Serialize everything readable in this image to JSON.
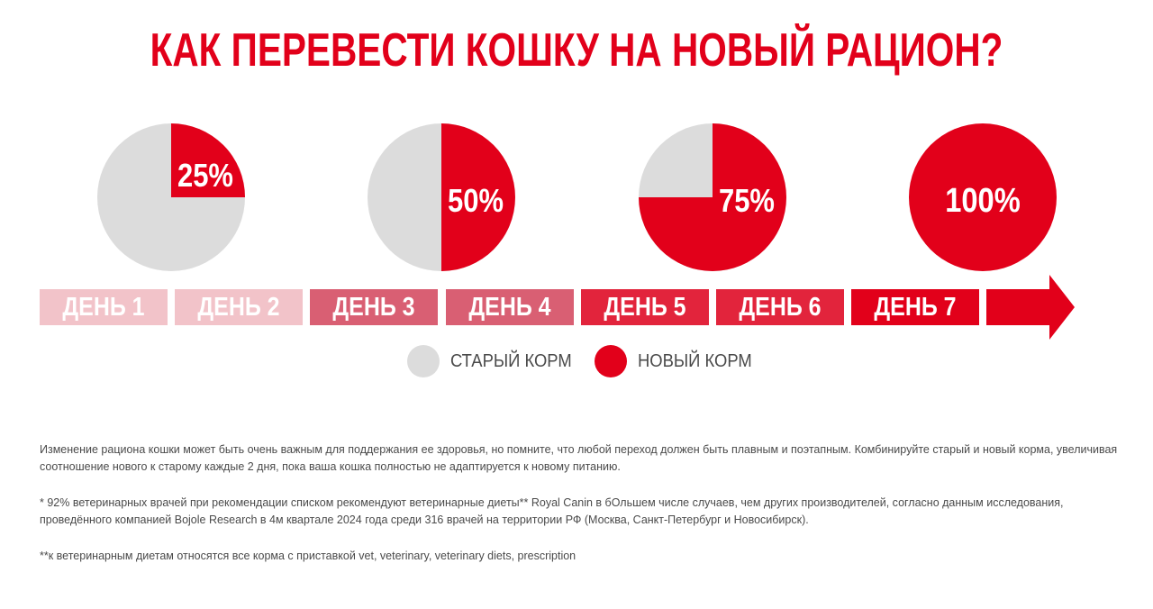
{
  "header": {
    "title": "КАК ПЕРЕВЕСТИ КОШКУ НА НОВЫЙ РАЦИОН?"
  },
  "colors": {
    "old": "#dcdcdc",
    "new": "#e2001a",
    "title": "#e2001a",
    "text": "#4a4a4a"
  },
  "chart_data": {
    "type": "pie",
    "pies": [
      {
        "new_percent": 25,
        "label": "25%"
      },
      {
        "new_percent": 50,
        "label": "50%"
      },
      {
        "new_percent": 75,
        "label": "75%"
      },
      {
        "new_percent": 100,
        "label": "100%"
      }
    ],
    "days": [
      {
        "label": "ДЕНЬ 1",
        "color": "#f2c3c9"
      },
      {
        "label": "ДЕНЬ 2",
        "color": "#f2c3c9"
      },
      {
        "label": "ДЕНЬ 3",
        "color": "#d95f73"
      },
      {
        "label": "ДЕНЬ 4",
        "color": "#d95f73"
      },
      {
        "label": "ДЕНЬ 5",
        "color": "#e2243c"
      },
      {
        "label": "ДЕНЬ 6",
        "color": "#e2243c"
      },
      {
        "label": "ДЕНЬ 7",
        "color": "#e2001a"
      }
    ],
    "legend": [
      {
        "label": "СТАРЫЙ КОРМ",
        "color": "#dcdcdc"
      },
      {
        "label": "НОВЫЙ КОРМ",
        "color": "#e2001a"
      }
    ]
  },
  "notes": [
    "Изменение рациона кошки может быть очень важным для поддержания ее здоровья, но помните, что любой переход должен быть плавным и поэтапным. Комбинируйте старый и новый корма, увеличивая соотношение нового к старому каждые 2 дня, пока ваша кошка полностью не адаптируется к новому питанию.",
    "* 92% ветеринарных врачей при рекомендации списком рекомендуют ветеринарные диеты** Royal Canin в бОльшем числе случаев, чем других производителей, согласно данным исследования, проведённого компанией Bojole Research в 4м квартале 2024 года среди 316 врачей на территории РФ (Москва, Санкт-Петербург и Новосибирск).",
    "**к ветеринарным диетам относятся все корма с приставкой vet, veterinary, veterinary diets, prescription"
  ]
}
